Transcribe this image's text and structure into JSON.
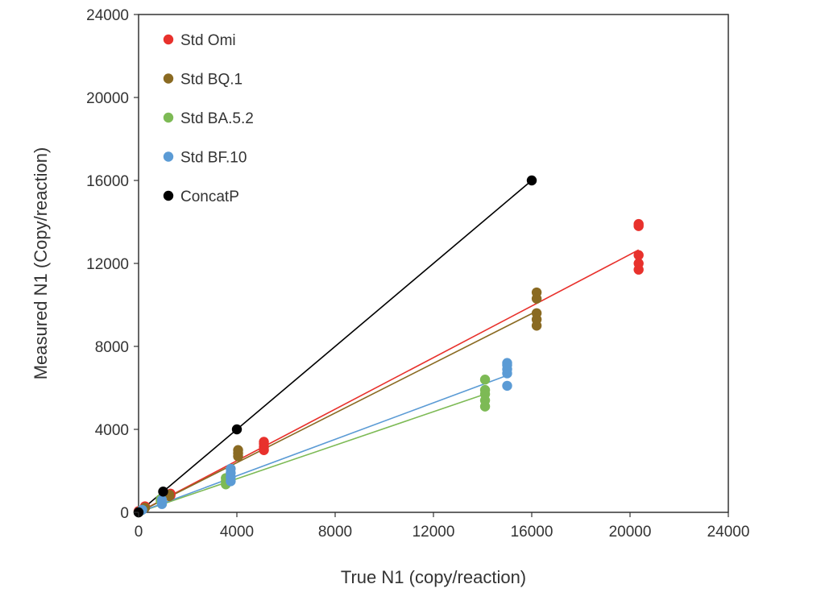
{
  "chart_data": {
    "type": "scatter",
    "title": "",
    "xlabel": "True N1 (copy/reaction)",
    "ylabel": "Measured N1 (Copy/reaction)",
    "xlim": [
      0,
      24000
    ],
    "ylim": [
      0,
      24000
    ],
    "xticks": [
      "0",
      "4000",
      "8000",
      "12000",
      "16000",
      "20000",
      "24000"
    ],
    "yticks": [
      "0",
      "4000",
      "8000",
      "12000",
      "16000",
      "20000",
      "24000"
    ],
    "grid": false,
    "legend_position": "top-left",
    "series": [
      {
        "name": "Std Omi",
        "color": "#e8312c",
        "points": [
          [
            0,
            0
          ],
          [
            0,
            60
          ],
          [
            260,
            230
          ],
          [
            260,
            290
          ],
          [
            1300,
            820
          ],
          [
            1300,
            900
          ],
          [
            5100,
            3000
          ],
          [
            5100,
            3150
          ],
          [
            5100,
            3300
          ],
          [
            5100,
            3400
          ],
          [
            20350,
            11700
          ],
          [
            20350,
            12000
          ],
          [
            20350,
            12400
          ],
          [
            20350,
            13800
          ],
          [
            20350,
            13900
          ]
        ],
        "fit": [
          [
            0,
            0
          ],
          [
            20350,
            12650
          ]
        ]
      },
      {
        "name": "Std BQ.1",
        "color": "#8a6a22",
        "points": [
          [
            0,
            0
          ],
          [
            260,
            220
          ],
          [
            1250,
            780
          ],
          [
            1250,
            850
          ],
          [
            4050,
            2700
          ],
          [
            4050,
            2850
          ],
          [
            4050,
            3000
          ],
          [
            16200,
            9000
          ],
          [
            16200,
            9300
          ],
          [
            16200,
            9600
          ],
          [
            16200,
            10300
          ],
          [
            16200,
            10600
          ]
        ],
        "fit": [
          [
            0,
            0
          ],
          [
            16200,
            9700
          ]
        ]
      },
      {
        "name": "Std BA.5.2",
        "color": "#7dba55",
        "points": [
          [
            0,
            0
          ],
          [
            120,
            100
          ],
          [
            900,
            550
          ],
          [
            900,
            640
          ],
          [
            3550,
            1350
          ],
          [
            3550,
            1500
          ],
          [
            3550,
            1650
          ],
          [
            14100,
            5100
          ],
          [
            14100,
            5400
          ],
          [
            14100,
            5700
          ],
          [
            14100,
            5900
          ],
          [
            14100,
            6400
          ]
        ],
        "fit": [
          [
            0,
            0
          ],
          [
            14100,
            5700
          ]
        ]
      },
      {
        "name": "Std BF.10",
        "color": "#5b9bd5",
        "points": [
          [
            0,
            0
          ],
          [
            150,
            120
          ],
          [
            950,
            400
          ],
          [
            950,
            600
          ],
          [
            3750,
            1500
          ],
          [
            3750,
            1700
          ],
          [
            3750,
            1900
          ],
          [
            3750,
            2100
          ],
          [
            15000,
            6100
          ],
          [
            15000,
            6700
          ],
          [
            15000,
            6900
          ],
          [
            15000,
            7100
          ],
          [
            15000,
            7200
          ]
        ],
        "fit": [
          [
            0,
            0
          ],
          [
            15000,
            6600
          ]
        ]
      },
      {
        "name": "ConcatP",
        "color": "#000000",
        "points": [
          [
            0,
            0
          ],
          [
            1000,
            1000
          ],
          [
            4000,
            4000
          ],
          [
            16000,
            16000
          ]
        ],
        "fit": [
          [
            0,
            0
          ],
          [
            16000,
            16000
          ]
        ]
      }
    ]
  }
}
